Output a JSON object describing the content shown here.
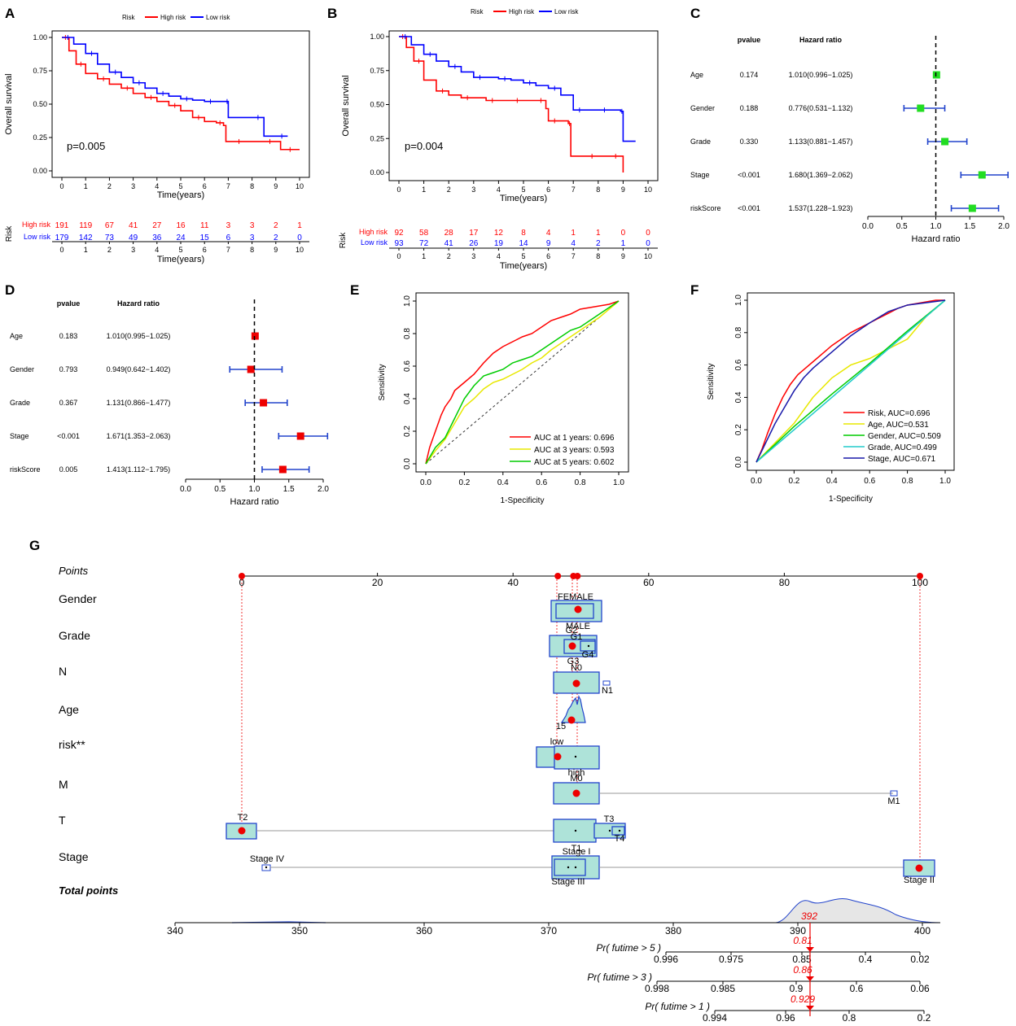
{
  "colors": {
    "high": "#ff0000",
    "low": "#0000ff",
    "fp_c": "#22dd22",
    "fp_d": "#ee0000",
    "yellow": "#e8e800",
    "green": "#00cc00",
    "cyan": "#22cccc",
    "navy": "#1a1aaa",
    "box_fill": "#aee3d9",
    "box_stroke": "#2244cc",
    "dot": "#ee0000",
    "grey": "#999999",
    "density": "#e6e6e6"
  },
  "panels": {
    "A": "A",
    "B": "B",
    "C": "C",
    "D": "D",
    "E": "E",
    "F": "F",
    "G": "G"
  },
  "chart_data": [
    {
      "id": "A",
      "type": "line",
      "legend_title": "Risk",
      "legend": [
        "High risk",
        "Low risk"
      ],
      "xlabel": "Time(years)",
      "ylabel": "Overall survival",
      "xlim": [
        0,
        10
      ],
      "ylim": [
        0,
        1
      ],
      "xticks": [
        0,
        1,
        2,
        3,
        4,
        5,
        6,
        7,
        8,
        9,
        10
      ],
      "yticks": [
        "0.00",
        "0.25",
        "0.50",
        "0.75",
        "1.00"
      ],
      "pvalue": "p=0.005",
      "series": [
        {
          "name": "High risk",
          "color_key": "high",
          "x": [
            0,
            0.3,
            0.6,
            1,
            1.5,
            2,
            2.5,
            3,
            3.5,
            4,
            4.5,
            5,
            5.5,
            6,
            6.5,
            6.8,
            6.9,
            8,
            8.5,
            9,
            9.2,
            10
          ],
          "y": [
            1,
            0.9,
            0.8,
            0.73,
            0.69,
            0.65,
            0.62,
            0.58,
            0.55,
            0.52,
            0.49,
            0.45,
            0.4,
            0.37,
            0.36,
            0.34,
            0.22,
            0.22,
            0.22,
            0.22,
            0.16,
            0.16
          ]
        },
        {
          "name": "Low risk",
          "color_key": "low",
          "x": [
            0,
            0.5,
            1,
            1.5,
            2,
            2.5,
            3,
            3.5,
            4,
            4.5,
            5,
            5.5,
            6,
            6.5,
            6.9,
            7,
            8,
            8.5,
            9,
            9.5
          ],
          "y": [
            1,
            0.95,
            0.88,
            0.8,
            0.74,
            0.7,
            0.66,
            0.62,
            0.58,
            0.56,
            0.54,
            0.53,
            0.52,
            0.52,
            0.52,
            0.4,
            0.4,
            0.26,
            0.26,
            0.26
          ]
        }
      ],
      "risk_table": {
        "title": "Risk",
        "xlabel": "Time(years)",
        "rows": [
          {
            "name": "High risk",
            "color_key": "high",
            "values": [
              "191",
              "119",
              "67",
              "41",
              "27",
              "16",
              "11",
              "3",
              "3",
              "2",
              "1"
            ]
          },
          {
            "name": "Low risk",
            "color_key": "low",
            "values": [
              "179",
              "142",
              "73",
              "49",
              "36",
              "24",
              "15",
              "6",
              "3",
              "2",
              "0"
            ]
          }
        ]
      }
    },
    {
      "id": "B",
      "type": "line",
      "legend_title": "Risk",
      "legend": [
        "High risk",
        "Low risk"
      ],
      "xlabel": "Time(years)",
      "ylabel": "Overall survival",
      "xlim": [
        0,
        10
      ],
      "ylim": [
        0,
        1
      ],
      "xticks": [
        0,
        1,
        2,
        3,
        4,
        5,
        6,
        7,
        8,
        9,
        10
      ],
      "yticks": [
        "0.00",
        "0.25",
        "0.50",
        "0.75",
        "1.00"
      ],
      "pvalue": "p=0.004",
      "series": [
        {
          "name": "High risk",
          "color_key": "high",
          "x": [
            0,
            0.3,
            0.6,
            1,
            1.5,
            2,
            2.5,
            3,
            3.5,
            4,
            4.5,
            5,
            5.5,
            5.9,
            6,
            6.5,
            6.8,
            6.9,
            7.5,
            8,
            8.5,
            8.9,
            9
          ],
          "y": [
            1,
            0.92,
            0.82,
            0.68,
            0.6,
            0.57,
            0.55,
            0.55,
            0.53,
            0.53,
            0.53,
            0.53,
            0.53,
            0.47,
            0.38,
            0.38,
            0.36,
            0.12,
            0.12,
            0.12,
            0.12,
            0.12,
            0
          ]
        },
        {
          "name": "Low risk",
          "color_key": "low",
          "x": [
            0,
            0.5,
            1,
            1.5,
            2,
            2.5,
            3,
            3.5,
            4,
            4.5,
            5,
            5.5,
            6,
            6.5,
            7,
            7.5,
            8,
            8.5,
            8.9,
            9,
            9.5
          ],
          "y": [
            1,
            0.94,
            0.87,
            0.82,
            0.78,
            0.74,
            0.7,
            0.7,
            0.69,
            0.68,
            0.66,
            0.64,
            0.62,
            0.57,
            0.46,
            0.46,
            0.46,
            0.46,
            0.45,
            0.23,
            0.23
          ]
        }
      ],
      "risk_table": {
        "title": "Risk",
        "xlabel": "Time(years)",
        "rows": [
          {
            "name": "High risk",
            "color_key": "high",
            "values": [
              "92",
              "58",
              "28",
              "17",
              "12",
              "8",
              "4",
              "1",
              "1",
              "0",
              "0"
            ]
          },
          {
            "name": "Low risk",
            "color_key": "low",
            "values": [
              "93",
              "72",
              "41",
              "26",
              "19",
              "14",
              "9",
              "4",
              "2",
              "1",
              "0"
            ]
          }
        ]
      }
    },
    {
      "id": "C",
      "type": "forest",
      "col_pvalue": "pvalue",
      "col_hr": "Hazard ratio",
      "xlabel": "Hazard ratio",
      "xlim": [
        0,
        2
      ],
      "xticks": [
        "0.0",
        "0.5",
        "1.0",
        "1.5",
        "2.0"
      ],
      "reference": 1.0,
      "rows": [
        {
          "label": "Age",
          "pvalue": "0.174",
          "hr_text": "1.010(0.996−1.025)",
          "hr": 1.01,
          "lo": 0.996,
          "hi": 1.025
        },
        {
          "label": "Gender",
          "pvalue": "0.188",
          "hr_text": "0.776(0.531−1.132)",
          "hr": 0.776,
          "lo": 0.531,
          "hi": 1.132
        },
        {
          "label": "Grade",
          "pvalue": "0.330",
          "hr_text": "1.133(0.881−1.457)",
          "hr": 1.133,
          "lo": 0.881,
          "hi": 1.457
        },
        {
          "label": "Stage",
          "pvalue": "<0.001",
          "hr_text": "1.680(1.369−2.062)",
          "hr": 1.68,
          "lo": 1.369,
          "hi": 2.062
        },
        {
          "label": "riskScore",
          "pvalue": "<0.001",
          "hr_text": "1.537(1.228−1.923)",
          "hr": 1.537,
          "lo": 1.228,
          "hi": 1.923
        }
      ]
    },
    {
      "id": "D",
      "type": "forest",
      "col_pvalue": "pvalue",
      "col_hr": "Hazard ratio",
      "xlabel": "Hazard ratio",
      "xlim": [
        0,
        2
      ],
      "xticks": [
        "0.0",
        "0.5",
        "1.0",
        "1.5",
        "2.0"
      ],
      "reference": 1.0,
      "rows": [
        {
          "label": "Age",
          "pvalue": "0.183",
          "hr_text": "1.010(0.995−1.025)",
          "hr": 1.01,
          "lo": 0.995,
          "hi": 1.025
        },
        {
          "label": "Gender",
          "pvalue": "0.793",
          "hr_text": "0.949(0.642−1.402)",
          "hr": 0.949,
          "lo": 0.642,
          "hi": 1.402
        },
        {
          "label": "Grade",
          "pvalue": "0.367",
          "hr_text": "1.131(0.866−1.477)",
          "hr": 1.131,
          "lo": 0.866,
          "hi": 1.477
        },
        {
          "label": "Stage",
          "pvalue": "<0.001",
          "hr_text": "1.671(1.353−2.063)",
          "hr": 1.671,
          "lo": 1.353,
          "hi": 2.063
        },
        {
          "label": "riskScore",
          "pvalue": "0.005",
          "hr_text": "1.413(1.112−1.795)",
          "hr": 1.413,
          "lo": 1.112,
          "hi": 1.795
        }
      ]
    },
    {
      "id": "E",
      "type": "roc",
      "xlabel": "1-Specificity",
      "ylabel": "Sensitivity",
      "xlim": [
        0,
        1
      ],
      "ylim": [
        0,
        1
      ],
      "xticks": [
        "0.0",
        "0.2",
        "0.4",
        "0.6",
        "0.8",
        "1.0"
      ],
      "yticks": [
        "0.0",
        "0.2",
        "0.4",
        "0.6",
        "0.8",
        "1.0"
      ],
      "series": [
        {
          "name": "AUC at 1 years: 0.696",
          "color_key": "high",
          "x": [
            0,
            0.02,
            0.05,
            0.08,
            0.1,
            0.13,
            0.15,
            0.18,
            0.2,
            0.25,
            0.3,
            0.35,
            0.4,
            0.45,
            0.5,
            0.55,
            0.6,
            0.65,
            0.7,
            0.75,
            0.8,
            0.85,
            0.9,
            0.95,
            1
          ],
          "y": [
            0,
            0.1,
            0.2,
            0.3,
            0.35,
            0.4,
            0.45,
            0.48,
            0.5,
            0.55,
            0.62,
            0.68,
            0.72,
            0.75,
            0.78,
            0.8,
            0.84,
            0.88,
            0.9,
            0.92,
            0.95,
            0.96,
            0.97,
            0.98,
            1
          ]
        },
        {
          "name": "AUC at 3 years: 0.593",
          "color_key": "yellow",
          "x": [
            0,
            0.05,
            0.1,
            0.15,
            0.2,
            0.25,
            0.3,
            0.35,
            0.4,
            0.45,
            0.5,
            0.55,
            0.6,
            0.65,
            0.7,
            0.75,
            0.8,
            0.85,
            0.9,
            0.95,
            1
          ],
          "y": [
            0,
            0.08,
            0.15,
            0.25,
            0.35,
            0.4,
            0.46,
            0.5,
            0.52,
            0.55,
            0.58,
            0.62,
            0.65,
            0.7,
            0.74,
            0.78,
            0.82,
            0.86,
            0.9,
            0.95,
            1
          ]
        },
        {
          "name": "AUC at 5 years: 0.602",
          "color_key": "green",
          "x": [
            0,
            0.05,
            0.1,
            0.15,
            0.2,
            0.25,
            0.3,
            0.35,
            0.4,
            0.45,
            0.5,
            0.55,
            0.6,
            0.65,
            0.7,
            0.75,
            0.8,
            0.85,
            0.9,
            0.95,
            1
          ],
          "y": [
            0,
            0.1,
            0.16,
            0.28,
            0.4,
            0.48,
            0.54,
            0.56,
            0.58,
            0.62,
            0.64,
            0.66,
            0.7,
            0.74,
            0.78,
            0.82,
            0.84,
            0.88,
            0.92,
            0.96,
            1
          ]
        }
      ]
    },
    {
      "id": "F",
      "type": "roc",
      "xlabel": "1-Specificity",
      "ylabel": "Sensitivity",
      "xlim": [
        0,
        1
      ],
      "ylim": [
        0,
        1
      ],
      "xticks": [
        "0.0",
        "0.2",
        "0.4",
        "0.6",
        "0.8",
        "1.0"
      ],
      "yticks": [
        "0.0",
        "0.2",
        "0.4",
        "0.6",
        "0.8",
        "1.0"
      ],
      "series": [
        {
          "name": "Risk, AUC=0.696",
          "color_key": "high",
          "x": [
            0,
            0.03,
            0.06,
            0.1,
            0.14,
            0.18,
            0.22,
            0.26,
            0.3,
            0.35,
            0.4,
            0.45,
            0.5,
            0.55,
            0.6,
            0.65,
            0.7,
            0.75,
            0.8,
            0.85,
            0.9,
            0.95,
            1
          ],
          "y": [
            0,
            0.08,
            0.18,
            0.3,
            0.4,
            0.48,
            0.54,
            0.58,
            0.62,
            0.67,
            0.72,
            0.76,
            0.8,
            0.83,
            0.86,
            0.89,
            0.92,
            0.95,
            0.97,
            0.98,
            0.99,
            1,
            1
          ]
        },
        {
          "name": "Age, AUC=0.531",
          "color_key": "yellow",
          "x": [
            0,
            0.1,
            0.2,
            0.3,
            0.4,
            0.5,
            0.6,
            0.7,
            0.8,
            0.9,
            1
          ],
          "y": [
            0,
            0.12,
            0.24,
            0.4,
            0.52,
            0.6,
            0.64,
            0.7,
            0.76,
            0.9,
            1
          ]
        },
        {
          "name": "Gender, AUC=0.509",
          "color_key": "green",
          "x": [
            0,
            0.2,
            0.4,
            0.6,
            0.8,
            1
          ],
          "y": [
            0,
            0.22,
            0.42,
            0.61,
            0.81,
            1
          ]
        },
        {
          "name": "Grade, AUC=0.499",
          "color_key": "cyan",
          "x": [
            0,
            0.5,
            1
          ],
          "y": [
            0,
            0.5,
            1
          ]
        },
        {
          "name": "Stage, AUC=0.671",
          "color_key": "navy",
          "x": [
            0,
            0.05,
            0.1,
            0.2,
            0.25,
            0.3,
            0.4,
            0.5,
            0.6,
            0.7,
            0.8,
            1
          ],
          "y": [
            0,
            0.12,
            0.24,
            0.44,
            0.52,
            0.58,
            0.68,
            0.78,
            0.86,
            0.93,
            0.97,
            1
          ]
        }
      ]
    },
    {
      "id": "G",
      "type": "nomogram",
      "points_label": "Points",
      "points_ticks": [
        0,
        20,
        40,
        60,
        80,
        100
      ],
      "rows": [
        "Gender",
        "Grade",
        "N",
        "Age",
        "risk**",
        "M",
        "T",
        "Stage"
      ],
      "total_label": "Total points",
      "total_ticks": [
        340,
        350,
        360,
        370,
        380,
        390,
        400
      ],
      "total_value": "392",
      "category_labels": {
        "gender": [
          "FEMALE",
          "MALE"
        ],
        "grade": [
          "G2",
          "G1",
          "G4",
          "G3"
        ],
        "n": [
          "N0",
          "N1"
        ],
        "age": [
          "15"
        ],
        "risk": [
          "low",
          "high"
        ],
        "m": [
          "M0",
          "M1"
        ],
        "t": [
          "T2",
          "T3",
          "T4",
          "T1"
        ],
        "stage": [
          "Stage IV",
          "Stage I",
          "Stage III",
          "Stage II"
        ]
      },
      "prob_scales": [
        {
          "label": "Pr( futime > 5 )",
          "ticks": [
            "0.996",
            "0.975",
            "0.85",
            "0.4",
            "0.02"
          ],
          "value": "0.81"
        },
        {
          "label": "Pr( futime > 3 )",
          "ticks": [
            "0.998",
            "0.985",
            "0.9",
            "0.6",
            "0.06"
          ],
          "value": "0.86"
        },
        {
          "label": "Pr( futime > 1 )",
          "ticks": [
            "0.994",
            "0.96",
            "0.8",
            "0.2"
          ],
          "value": "0.929"
        }
      ]
    }
  ]
}
